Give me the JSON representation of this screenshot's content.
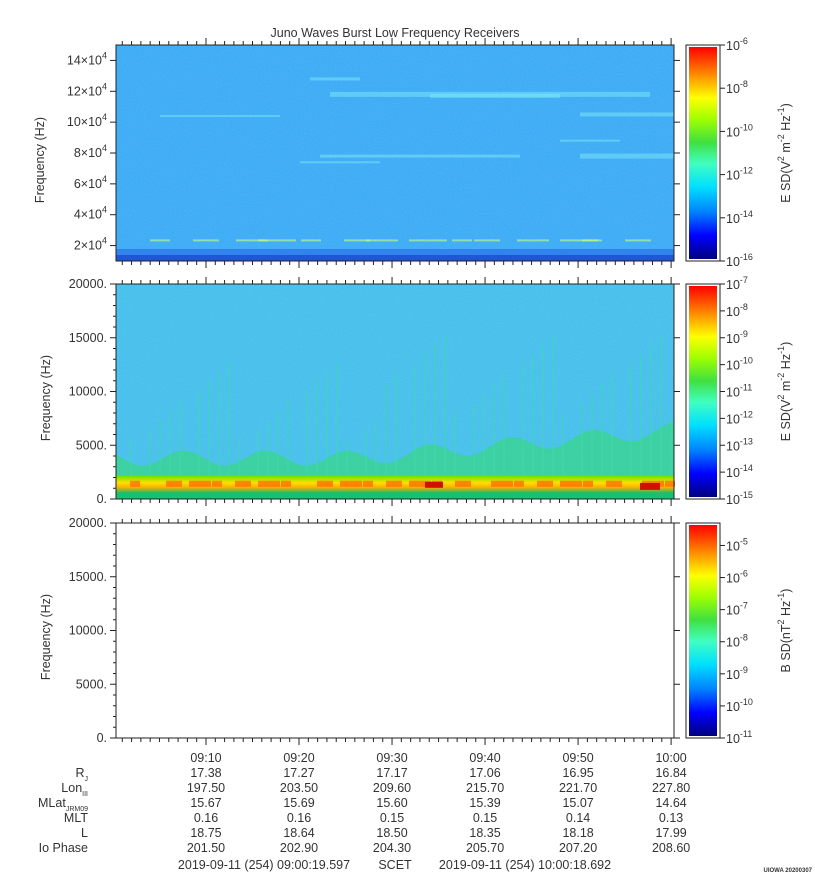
{
  "title": "Juno Waves Burst Low Frequency Receivers",
  "stamp": "UIOWA 20200307",
  "chart_data": [
    {
      "type": "heatmap",
      "panel": "top",
      "ylabel": "Frequency (Hz)",
      "ylim": [
        10000,
        150000
      ],
      "yticks": [
        20000,
        40000,
        60000,
        80000,
        100000,
        120000,
        140000
      ],
      "ytick_labels": [
        {
          "mant": "2×10",
          "exp": "4"
        },
        {
          "mant": "4×10",
          "exp": "4"
        },
        {
          "mant": "6×10",
          "exp": "4"
        },
        {
          "mant": "8×10",
          "exp": "4"
        },
        {
          "mant": "10×10",
          "exp": "4"
        },
        {
          "mant": "12×10",
          "exp": "4"
        },
        {
          "mant": "14×10",
          "exp": "4"
        }
      ],
      "colorbar": {
        "label_main": "E SD(V",
        "label_sup1": "2",
        "label_mid": " m",
        "label_sup2": "-2",
        "label_mid2": " Hz",
        "label_sup3": "-1",
        "label_end": ")",
        "range_exp": [
          -16,
          -6
        ],
        "ticks": [
          {
            "exp": "-6",
            "value": -6
          },
          {
            "exp": "-8",
            "value": -8
          },
          {
            "exp": "-10",
            "value": -10
          },
          {
            "exp": "-12",
            "value": -12
          },
          {
            "exp": "-14",
            "value": -14
          },
          {
            "exp": "-16",
            "value": -16
          }
        ]
      }
    },
    {
      "type": "heatmap",
      "panel": "middle",
      "ylabel": "Frequency (Hz)",
      "ylim": [
        0,
        20000
      ],
      "yticks": [
        0,
        5000,
        10000,
        15000,
        20000
      ],
      "ytick_labels": [
        "0.",
        "5000.",
        "10000.",
        "15000.",
        "20000."
      ],
      "colorbar": {
        "label_main": "E SD(V",
        "label_sup1": "2",
        "label_mid": " m",
        "label_sup2": "-2",
        "label_mid2": " Hz",
        "label_sup3": "-1",
        "label_end": ")",
        "range_exp": [
          -15,
          -7
        ],
        "ticks": [
          {
            "exp": "-7",
            "value": -7
          },
          {
            "exp": "-8",
            "value": -8
          },
          {
            "exp": "-9",
            "value": -9
          },
          {
            "exp": "-10",
            "value": -10
          },
          {
            "exp": "-11",
            "value": -11
          },
          {
            "exp": "-12",
            "value": -12
          },
          {
            "exp": "-13",
            "value": -13
          },
          {
            "exp": "-14",
            "value": -14
          },
          {
            "exp": "-15",
            "value": -15
          }
        ]
      }
    },
    {
      "type": "heatmap",
      "panel": "bottom",
      "ylabel": "Frequency (Hz)",
      "ylim": [
        0,
        20000
      ],
      "yticks": [
        0,
        5000,
        10000,
        15000,
        20000
      ],
      "ytick_labels": [
        "0.",
        "5000.",
        "10000.",
        "15000.",
        "20000."
      ],
      "colorbar": {
        "label_main": "B SD(nT",
        "label_sup1": "2",
        "label_mid": " Hz",
        "label_sup2": "-1",
        "label_mid2": "",
        "label_sup3": "",
        "label_end": ")",
        "range_exp": [
          -11,
          -4.3
        ],
        "ticks": [
          {
            "exp": "-5",
            "value": -5
          },
          {
            "exp": "-6",
            "value": -6
          },
          {
            "exp": "-7",
            "value": -7
          },
          {
            "exp": "-8",
            "value": -8
          },
          {
            "exp": "-9",
            "value": -9
          },
          {
            "exp": "-10",
            "value": -10
          },
          {
            "exp": "-11",
            "value": -11
          }
        ]
      }
    }
  ],
  "time_axis": {
    "range_minutes": [
      0.3266,
      60.3115
    ],
    "major_minutes": [
      10,
      20,
      30,
      40,
      50,
      60
    ],
    "labels": [
      "09:10",
      "09:20",
      "09:30",
      "09:40",
      "09:50",
      "10:00"
    ]
  },
  "ephemeris": [
    {
      "label": "R",
      "sub": "J",
      "values": [
        "17.38",
        "17.27",
        "17.17",
        "17.06",
        "16.95",
        "16.84"
      ]
    },
    {
      "label": "Lon",
      "sub": "III",
      "values": [
        "197.50",
        "203.50",
        "209.60",
        "215.70",
        "221.70",
        "227.80"
      ]
    },
    {
      "label": "MLat",
      "sub": "JRM09",
      "values": [
        "15.67",
        "15.69",
        "15.60",
        "15.39",
        "15.07",
        "14.64"
      ]
    },
    {
      "label": "MLT",
      "sub": "",
      "values": [
        "0.16",
        "0.16",
        "0.15",
        "0.15",
        "0.14",
        "0.13"
      ]
    },
    {
      "label": "L",
      "sub": "",
      "values": [
        "18.75",
        "18.64",
        "18.50",
        "18.35",
        "18.18",
        "17.99"
      ]
    },
    {
      "label": "Io Phase",
      "sub": "",
      "values": [
        "201.50",
        "202.90",
        "204.30",
        "205.70",
        "207.20",
        "208.60"
      ]
    }
  ],
  "footer": {
    "start": "2019-09-11 (254) 09:00:19.597",
    "scet": "SCET",
    "end": "2019-09-11 (254) 10:00:18.692"
  }
}
